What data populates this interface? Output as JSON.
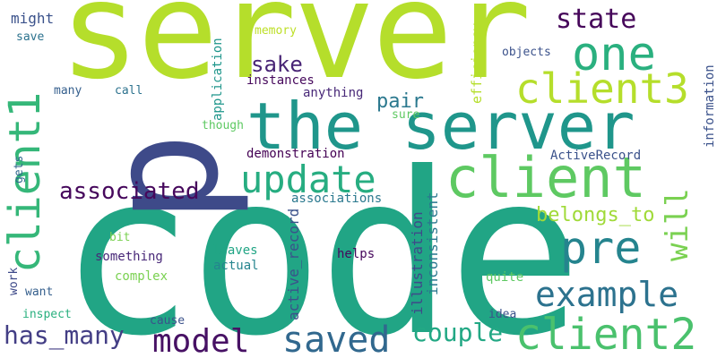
{
  "words": [
    {
      "id": "code",
      "text": "code",
      "color": "#21a585"
    },
    {
      "id": "server",
      "text": "server",
      "color": "#b5de2b"
    },
    {
      "id": "p",
      "text": "p",
      "color": "#3e4a89"
    },
    {
      "id": "the-server",
      "text": "the server",
      "color": "#1f968b"
    },
    {
      "id": "client",
      "text": "client",
      "color": "#5ec962"
    },
    {
      "id": "client1",
      "text": "client1",
      "color": "#35b779"
    },
    {
      "id": "one",
      "text": "one",
      "color": "#2ab07f"
    },
    {
      "id": "client3",
      "text": "client3",
      "color": "#b5de2b"
    },
    {
      "id": "state",
      "text": "state",
      "color": "#46075a"
    },
    {
      "id": "update",
      "text": "update",
      "color": "#27ad81"
    },
    {
      "id": "associated",
      "text": "associated",
      "color": "#46085c"
    },
    {
      "id": "pre",
      "text": "pre",
      "color": "#25848e"
    },
    {
      "id": "will",
      "text": "will",
      "color": "#7ad151"
    },
    {
      "id": "example",
      "text": "example",
      "color": "#2c728e"
    },
    {
      "id": "client2",
      "text": "client2",
      "color": "#4ac16d"
    },
    {
      "id": "model",
      "text": "model",
      "color": "#471164"
    },
    {
      "id": "saved",
      "text": "saved",
      "color": "#31688e"
    },
    {
      "id": "has-many",
      "text": "has_many",
      "color": "#433e85"
    },
    {
      "id": "couple",
      "text": "couple",
      "color": "#22a884"
    },
    {
      "id": "sake",
      "text": "sake",
      "color": "#482475"
    },
    {
      "id": "pair",
      "text": "pair",
      "color": "#2a788e"
    },
    {
      "id": "belongs-to",
      "text": "belongs_to",
      "color": "#a0da39"
    },
    {
      "id": "might",
      "text": "might",
      "color": "#3b528b"
    },
    {
      "id": "save",
      "text": "save",
      "color": "#2c728e"
    },
    {
      "id": "many",
      "text": "many",
      "color": "#355f8d"
    },
    {
      "id": "call",
      "text": "call",
      "color": "#2c728e"
    },
    {
      "id": "memory",
      "text": "memory",
      "color": "#bddf26"
    },
    {
      "id": "efficiency",
      "text": "efficiency",
      "color": "#b5de2b"
    },
    {
      "id": "objects",
      "text": "objects",
      "color": "#3b528b"
    },
    {
      "id": "information",
      "text": "information",
      "color": "#3b528b"
    },
    {
      "id": "instances",
      "text": "instances",
      "color": "#46085c"
    },
    {
      "id": "anything",
      "text": "anything",
      "color": "#482878"
    },
    {
      "id": "sure",
      "text": "sure",
      "color": "#5ec962"
    },
    {
      "id": "application",
      "text": "application",
      "color": "#1f968b"
    },
    {
      "id": "though",
      "text": "though",
      "color": "#5ec962"
    },
    {
      "id": "demonstration",
      "text": "demonstration",
      "color": "#440154"
    },
    {
      "id": "activerecord",
      "text": "ActiveRecord",
      "color": "#3b528b"
    },
    {
      "id": "gets",
      "text": "gets",
      "color": "#31688e"
    },
    {
      "id": "associations",
      "text": "associations",
      "color": "#2a788e"
    },
    {
      "id": "bit",
      "text": "bit",
      "color": "#7ad151"
    },
    {
      "id": "something",
      "text": "something",
      "color": "#482878"
    },
    {
      "id": "leaves",
      "text": "leaves",
      "color": "#21a585"
    },
    {
      "id": "actual",
      "text": "actual",
      "color": "#25848e"
    },
    {
      "id": "active-record",
      "text": "active_record",
      "color": "#3b528b"
    },
    {
      "id": "illustration",
      "text": "illustration",
      "color": "#3e4a89"
    },
    {
      "id": "inconsistent",
      "text": "inconsistent",
      "color": "#2a788e"
    },
    {
      "id": "helps",
      "text": "helps",
      "color": "#46085c"
    },
    {
      "id": "work",
      "text": "work",
      "color": "#3e4a89"
    },
    {
      "id": "complex",
      "text": "complex",
      "color": "#7ad151"
    },
    {
      "id": "want",
      "text": "want",
      "color": "#355f8d"
    },
    {
      "id": "quite",
      "text": "quite",
      "color": "#5ec962"
    },
    {
      "id": "inspect",
      "text": "inspect",
      "color": "#2ab07f"
    },
    {
      "id": "cause",
      "text": "cause",
      "color": "#3b528b"
    },
    {
      "id": "idea",
      "text": "idea",
      "color": "#3b528b"
    }
  ]
}
